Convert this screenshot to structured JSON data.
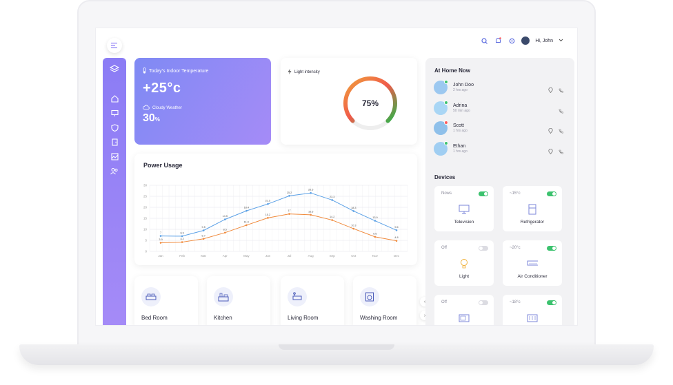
{
  "topbar": {
    "greeting": "Hi, John"
  },
  "colors": {
    "accent": "#8b7cf5",
    "blue_series": "#5aa0e6",
    "orange_series": "#f08a3c",
    "toggle_on": "#3cc26e",
    "toggle_off": "#dcdce2"
  },
  "temperature": {
    "title": "Today's Indoor Temperature",
    "value": "+25°c",
    "weather": "Cloudy Weather",
    "humidity": "30",
    "humidity_unit": "%"
  },
  "light": {
    "title": "Light intensity",
    "value": "75%",
    "fraction": 0.75
  },
  "power": {
    "title": "Power Usage"
  },
  "chart_data": {
    "type": "line",
    "categories": [
      "Jan",
      "Feb",
      "Mar",
      "Apr",
      "May",
      "Jun",
      "Jul",
      "Aug",
      "Sep",
      "Oct",
      "Nov",
      "Dec"
    ],
    "series": [
      {
        "values": [
          7,
          6.9,
          9.5,
          14.5,
          18.4,
          21.5,
          25.2,
          26.5,
          23.3,
          18.3,
          13.9,
          9.6
        ]
      },
      {
        "values": [
          3.9,
          4.2,
          5.7,
          8.5,
          11.9,
          15.2,
          17,
          16.6,
          14.2,
          10.3,
          6.6,
          4.8
        ]
      }
    ],
    "yticks": [
      0,
      5,
      10,
      15,
      20,
      25,
      30
    ],
    "ylim": [
      0,
      30
    ],
    "xlabel": "",
    "ylabel": "",
    "grid": true
  },
  "rooms": [
    {
      "label": "Bed Room",
      "icon": "bed-icon"
    },
    {
      "label": "Kitchen",
      "icon": "kitchen-icon"
    },
    {
      "label": "Living Room",
      "icon": "sofa-icon"
    },
    {
      "label": "Washing Room",
      "icon": "washing-machine-icon"
    }
  ],
  "at_home": {
    "title": "At Home Now",
    "people": [
      {
        "name": "John Doo",
        "time": "2 hrs ago",
        "presence": "#3cc26e"
      },
      {
        "name": "Adrina",
        "time": "50 min ago",
        "presence": "#3cc26e"
      },
      {
        "name": "Scott",
        "time": "1 hrs ago",
        "presence": "#ff5a5a"
      },
      {
        "name": "Ethan",
        "time": "1 hrs ago",
        "presence": "#3cc26e"
      }
    ]
  },
  "devices": {
    "title": "Devices",
    "items": [
      {
        "status": "Nows",
        "label": "Television",
        "on": true,
        "icon": "television-icon"
      },
      {
        "status": "~15°c",
        "label": "Refrigerator",
        "on": true,
        "icon": "refrigerator-icon"
      },
      {
        "status": "Off",
        "label": "Light",
        "on": false,
        "icon": "lightbulb-icon"
      },
      {
        "status": "~20°c",
        "label": "Air Conditioner",
        "on": true,
        "icon": "air-conditioner-icon"
      },
      {
        "status": "Off",
        "label": "",
        "on": false,
        "icon": "microwave-icon"
      },
      {
        "status": "~18°c",
        "label": "",
        "on": true,
        "icon": "heater-icon"
      }
    ]
  }
}
